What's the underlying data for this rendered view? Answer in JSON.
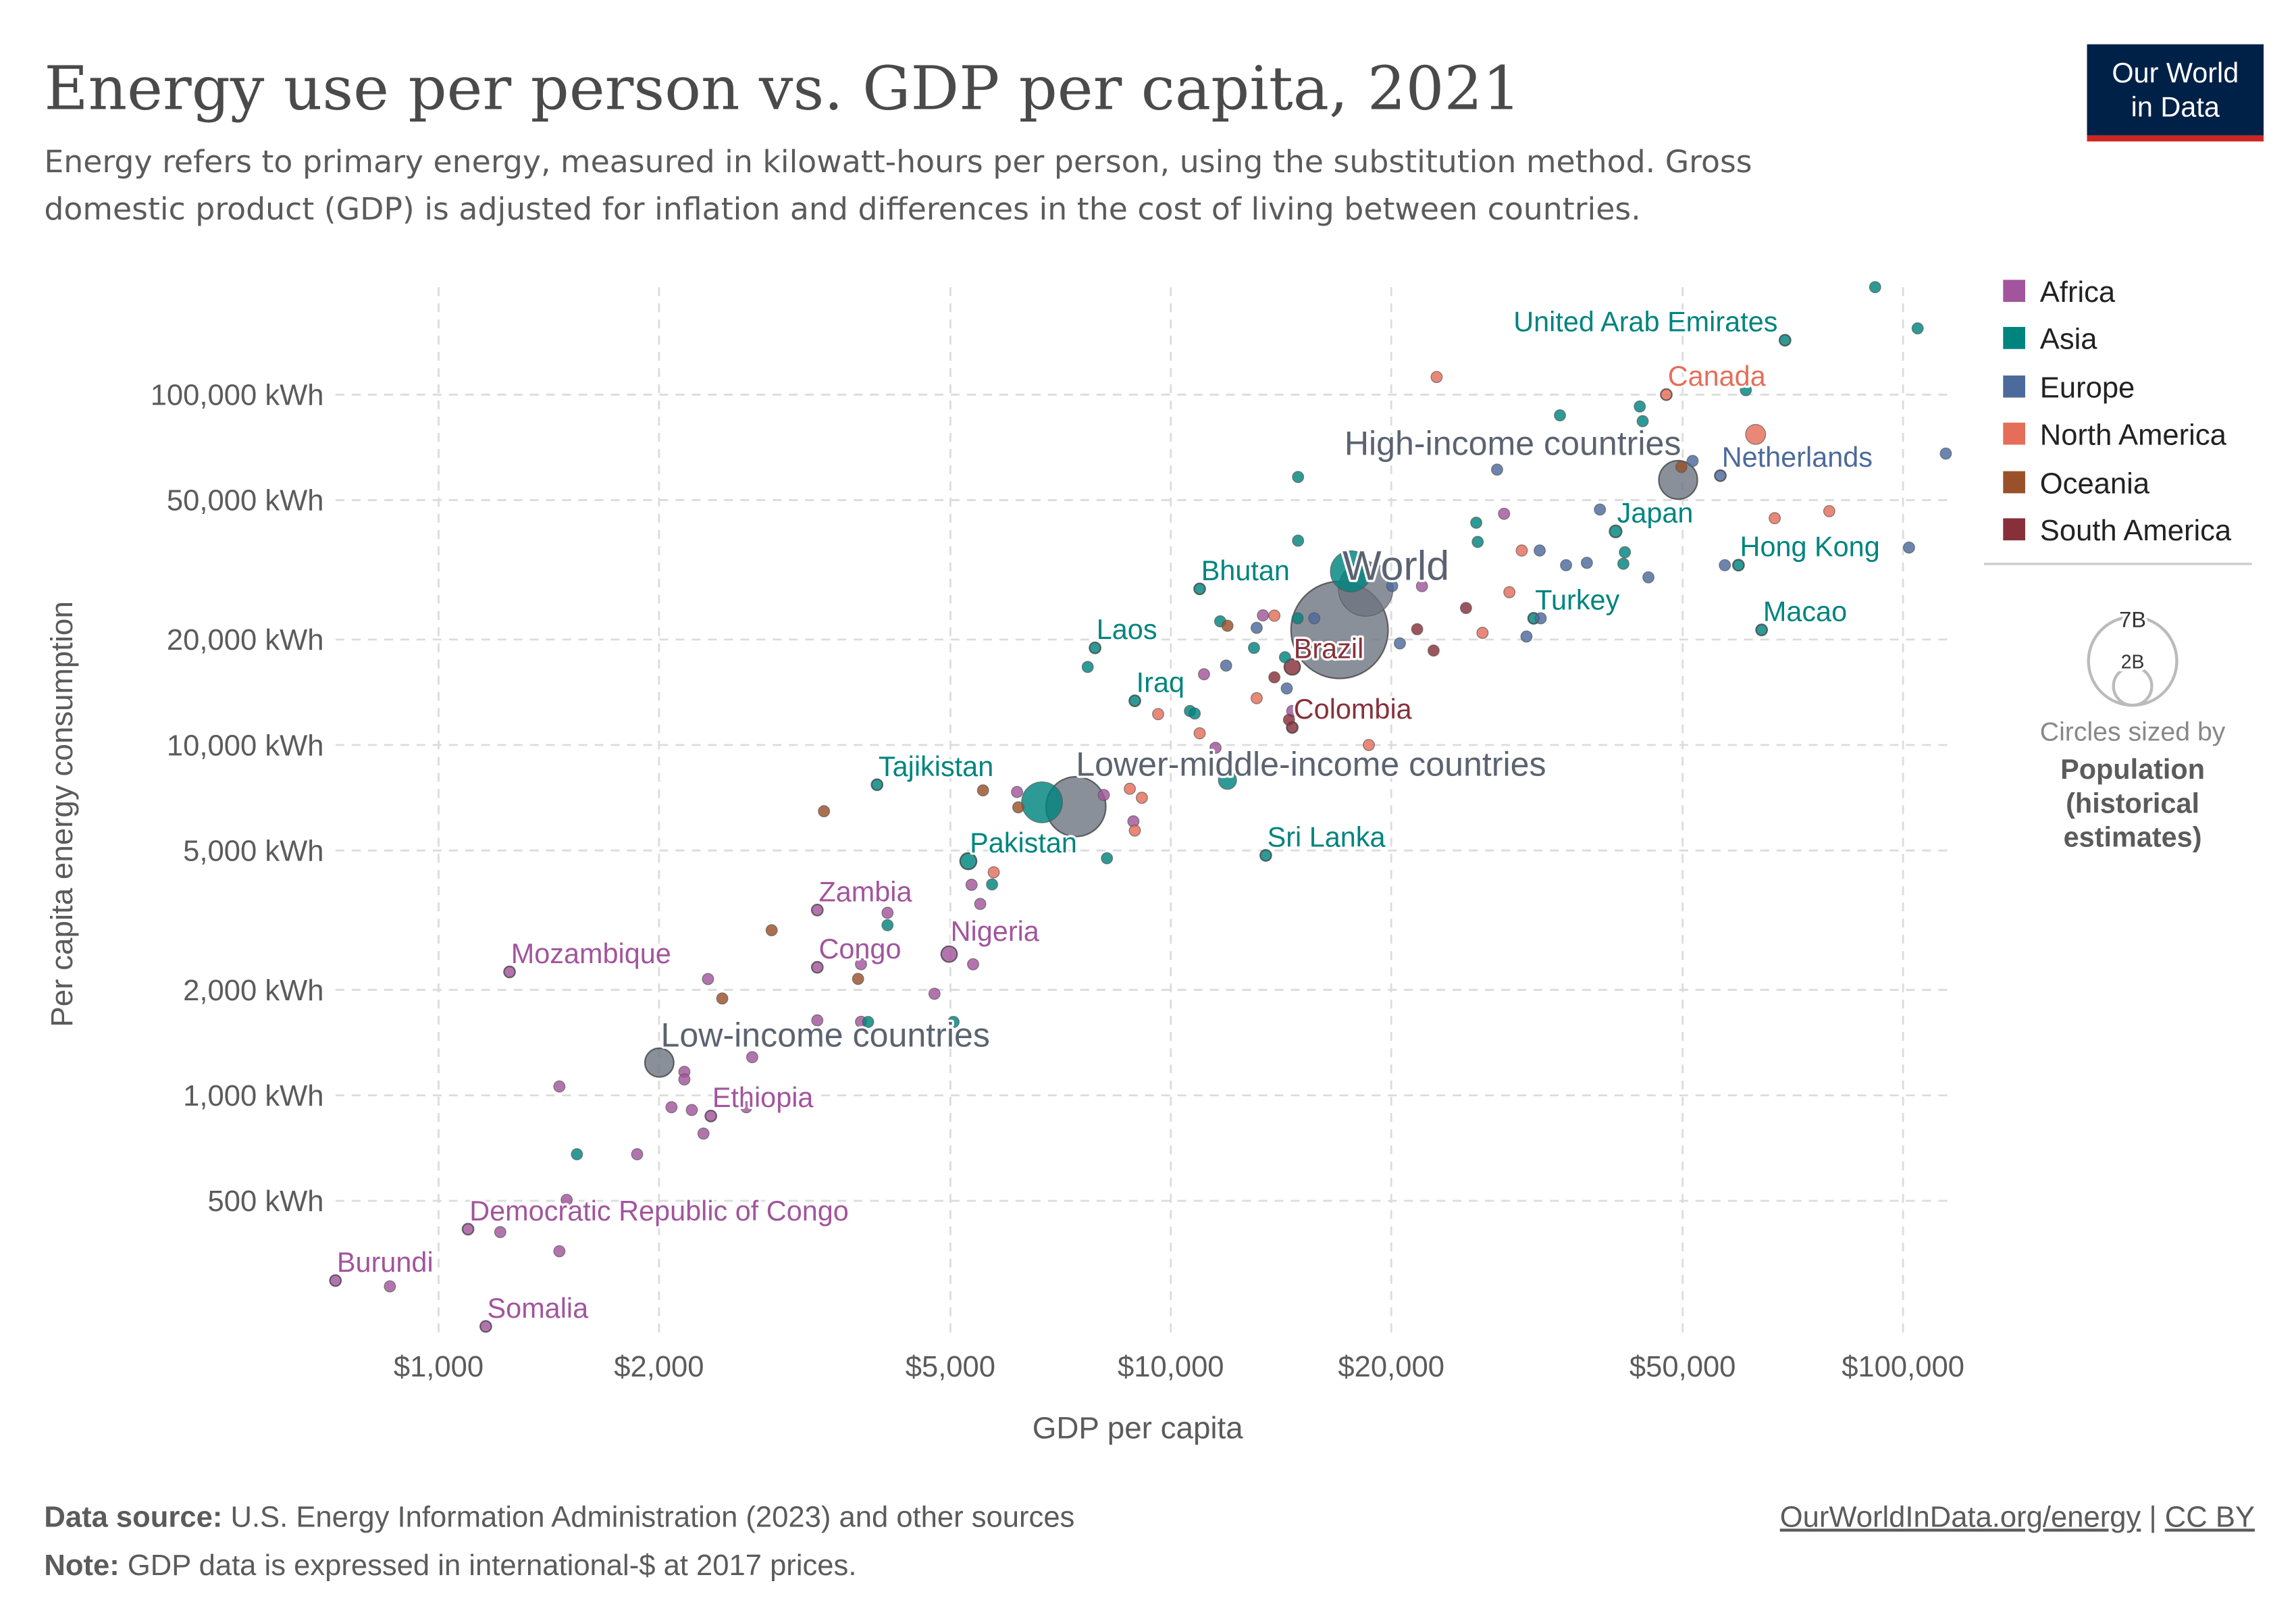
{
  "header": {
    "title": "Energy use per person vs. GDP per capita, 2021",
    "subtitle_line1": "Energy refers to primary energy, measured in kilowatt-hours per person, using the substitution method. Gross",
    "subtitle_line2": "domestic product (GDP) is adjusted for inflation and differences in the cost of living between countries.",
    "logo_line1": "Our World",
    "logo_line2": "in Data"
  },
  "footer": {
    "source_label": "Data source:",
    "source_text": " U.S. Energy Information Administration (2023) and other sources",
    "note_label": "Note:",
    "note_text": " GDP data is expressed in international-$ at 2017 prices.",
    "link": "OurWorldInData.org/energy",
    "separator": " | ",
    "license": "CC BY"
  },
  "colors": {
    "Africa": "#a2559c",
    "Asia": "#00847e",
    "Europe": "#4c6a9c",
    "North America": "#e56e5a",
    "Oceania": "#9a5129",
    "South America": "#883039",
    "Aggregate": "#6d7480",
    "aggregate_text": "#5b6371",
    "logo_bg": "#002147",
    "logo_accent": "#ce261e"
  },
  "chart_data": {
    "type": "scatter",
    "title": "Energy use per person vs. GDP per capita, 2021",
    "xlabel": "GDP per capita",
    "ylabel": "Per capita energy consumption",
    "xscale": "log",
    "yscale": "log",
    "xlim": [
      720,
      118000
    ],
    "ylim": [
      210,
      215000
    ],
    "grid": true,
    "xticks": [
      {
        "value": 1000,
        "label": "$1,000"
      },
      {
        "value": 2000,
        "label": "$2,000"
      },
      {
        "value": 5000,
        "label": "$5,000"
      },
      {
        "value": 10000,
        "label": "$10,000"
      },
      {
        "value": 20000,
        "label": "$20,000"
      },
      {
        "value": 50000,
        "label": "$50,000"
      },
      {
        "value": 100000,
        "label": "$100,000"
      }
    ],
    "yticks": [
      {
        "value": 500,
        "label": "500 kWh"
      },
      {
        "value": 1000,
        "label": "1,000 kWh"
      },
      {
        "value": 2000,
        "label": "2,000 kWh"
      },
      {
        "value": 5000,
        "label": "5,000 kWh"
      },
      {
        "value": 10000,
        "label": "10,000 kWh"
      },
      {
        "value": 20000,
        "label": "20,000 kWh"
      },
      {
        "value": 50000,
        "label": "50,000 kWh"
      },
      {
        "value": 100000,
        "label": "100,000 kWh"
      }
    ],
    "legend": {
      "placement": "right",
      "entries": [
        "Africa",
        "Asia",
        "Europe",
        "North America",
        "Oceania",
        "South America"
      ]
    },
    "size_legend": {
      "large": "7B",
      "small": "2B",
      "caption": "Circles sized by",
      "variable_line1": "Population",
      "variable_line2": "(historical",
      "variable_line3": "estimates)"
    },
    "points": [
      {
        "name": "World",
        "gdp": 17000,
        "energy": 21300,
        "continent": "Aggregate",
        "pop": 7900,
        "label": true
      },
      {
        "name": "Upper-middle-income countries",
        "gdp": 18460,
        "energy": 27900,
        "continent": "Aggregate",
        "pop": 2500
      },
      {
        "name": "Lower-middle-income countries",
        "gdp": 7420,
        "energy": 6670,
        "continent": "Aggregate",
        "pop": 3000,
        "label": true
      },
      {
        "name": "High-income countries",
        "gdp": 49300,
        "energy": 57100,
        "continent": "Aggregate",
        "pop": 1250,
        "label": true
      },
      {
        "name": "Low-income countries",
        "gdp": 2002,
        "energy": 1240,
        "continent": "Aggregate",
        "pop": 700,
        "label": true
      },
      {
        "name": "China",
        "gdp": 17620,
        "energy": 31300,
        "continent": "Asia",
        "pop": 1412
      },
      {
        "name": "India",
        "gdp": 6670,
        "energy": 6860,
        "continent": "Asia",
        "pop": 1400
      },
      {
        "name": "United States",
        "gdp": 62900,
        "energy": 77000,
        "continent": "North America",
        "pop": 335
      },
      {
        "name": "Indonesia",
        "gdp": 11950,
        "energy": 7930,
        "continent": "Asia",
        "pop": 275
      },
      {
        "name": "United Arab Emirates",
        "gdp": 69000,
        "energy": 143000,
        "continent": "Asia",
        "label": true
      },
      {
        "name": "Canada",
        "gdp": 47500,
        "energy": 100000,
        "continent": "North America",
        "label": true
      },
      {
        "name": "Netherlands",
        "gdp": 56300,
        "energy": 58700,
        "continent": "Europe",
        "label": true
      },
      {
        "name": "Japan",
        "gdp": 40500,
        "energy": 40700,
        "continent": "Asia",
        "pop": 125,
        "label": true
      },
      {
        "name": "Hong Kong",
        "gdp": 59600,
        "energy": 32600,
        "continent": "Asia",
        "label": true
      },
      {
        "name": "Macao",
        "gdp": 64100,
        "energy": 21300,
        "continent": "Asia",
        "label": true
      },
      {
        "name": "Turkey",
        "gdp": 31300,
        "energy": 22990,
        "continent": "Asia",
        "label": true
      },
      {
        "name": "Bhutan",
        "gdp": 10950,
        "energy": 27900,
        "continent": "Asia",
        "label": true
      },
      {
        "name": "Laos",
        "gdp": 7880,
        "energy": 18930,
        "continent": "Asia",
        "label": true
      },
      {
        "name": "Iraq",
        "gdp": 8930,
        "energy": 13370,
        "continent": "Asia",
        "label": true
      },
      {
        "name": "Brazil",
        "gdp": 14650,
        "energy": 16700,
        "continent": "South America",
        "pop": 214,
        "label": true
      },
      {
        "name": "Colombia",
        "gdp": 14650,
        "energy": 11220,
        "continent": "South America",
        "label": true
      },
      {
        "name": "Tajikistan",
        "gdp": 3970,
        "energy": 7700,
        "continent": "Asia",
        "label": true
      },
      {
        "name": "Pakistan",
        "gdp": 5290,
        "energy": 4660,
        "continent": "Asia",
        "pop": 230,
        "label": true
      },
      {
        "name": "Sri Lanka",
        "gdp": 13480,
        "energy": 4840,
        "continent": "Asia",
        "label": true
      },
      {
        "name": "Zambia",
        "gdp": 3290,
        "energy": 3380,
        "continent": "Africa",
        "label": true
      },
      {
        "name": "Congo",
        "gdp": 3290,
        "energy": 2320,
        "continent": "Africa",
        "label": true
      },
      {
        "name": "Nigeria",
        "gdp": 4980,
        "energy": 2530,
        "continent": "Africa",
        "pop": 213,
        "label": true
      },
      {
        "name": "Mozambique",
        "gdp": 1250,
        "energy": 2250,
        "continent": "Africa",
        "label": true
      },
      {
        "name": "Ethiopia",
        "gdp": 2354,
        "energy": 873,
        "continent": "Africa",
        "label": true
      },
      {
        "name": "Democratic Republic of Congo",
        "gdp": 1097,
        "energy": 415,
        "continent": "Africa",
        "label": true
      },
      {
        "name": "Burundi",
        "gdp": 723,
        "energy": 296,
        "continent": "Africa",
        "label": true
      },
      {
        "name": "Somalia",
        "gdp": 1160,
        "energy": 219,
        "continent": "Africa",
        "label": true
      },
      {
        "gdp": 858,
        "energy": 285,
        "continent": "Africa"
      },
      {
        "gdp": 1214,
        "energy": 407,
        "continent": "Africa"
      },
      {
        "gdp": 1462,
        "energy": 359,
        "continent": "Africa"
      },
      {
        "gdp": 1462,
        "energy": 1060,
        "continent": "Africa"
      },
      {
        "gdp": 1496,
        "energy": 503,
        "continent": "Africa"
      },
      {
        "gdp": 1867,
        "energy": 679,
        "continent": "Africa"
      },
      {
        "gdp": 2166,
        "energy": 1167,
        "continent": "Africa"
      },
      {
        "gdp": 2166,
        "energy": 1110,
        "continent": "Africa"
      },
      {
        "gdp": 2217,
        "energy": 908,
        "continent": "Africa"
      },
      {
        "gdp": 2080,
        "energy": 925,
        "continent": "Africa"
      },
      {
        "gdp": 2300,
        "energy": 778,
        "continent": "Africa"
      },
      {
        "gdp": 2632,
        "energy": 925,
        "continent": "Africa"
      },
      {
        "gdp": 2681,
        "energy": 1285,
        "continent": "Africa"
      },
      {
        "gdp": 2333,
        "energy": 2148,
        "continent": "Africa"
      },
      {
        "gdp": 4103,
        "energy": 3319,
        "continent": "Africa"
      },
      {
        "gdp": 3775,
        "energy": 2367,
        "continent": "Africa"
      },
      {
        "gdp": 3290,
        "energy": 1637,
        "continent": "Africa"
      },
      {
        "gdp": 3775,
        "energy": 1622,
        "continent": "Africa"
      },
      {
        "gdp": 4756,
        "energy": 1950,
        "continent": "Africa"
      },
      {
        "gdp": 5370,
        "energy": 2367,
        "continent": "Africa"
      },
      {
        "gdp": 5344,
        "energy": 3990,
        "continent": "Africa"
      },
      {
        "gdp": 5492,
        "energy": 3518,
        "continent": "Africa"
      },
      {
        "gdp": 6166,
        "energy": 7345,
        "continent": "Africa"
      },
      {
        "gdp": 8100,
        "energy": 7200,
        "continent": "Africa"
      },
      {
        "gdp": 8890,
        "energy": 6053,
        "continent": "Africa"
      },
      {
        "gdp": 11510,
        "energy": 9816,
        "continent": "Africa"
      },
      {
        "gdp": 11100,
        "energy": 15920,
        "continent": "Africa"
      },
      {
        "gdp": 14650,
        "energy": 12500,
        "continent": "Africa"
      },
      {
        "gdp": 28520,
        "energy": 45710,
        "continent": "Africa"
      },
      {
        "gdp": 22030,
        "energy": 28400,
        "continent": "Africa"
      },
      {
        "gdp": 13360,
        "energy": 23440,
        "continent": "Africa"
      },
      {
        "gdp": 91600,
        "energy": 202700,
        "continent": "Asia"
      },
      {
        "gdp": 104700,
        "energy": 154600,
        "continent": "Asia"
      },
      {
        "gdp": 34000,
        "energy": 87300,
        "continent": "Asia"
      },
      {
        "gdp": 43700,
        "energy": 92500,
        "continent": "Asia"
      },
      {
        "gdp": 44100,
        "energy": 84000,
        "continent": "Asia"
      },
      {
        "gdp": 61000,
        "energy": 103000,
        "continent": "Asia"
      },
      {
        "gdp": 14920,
        "energy": 58200,
        "continent": "Asia"
      },
      {
        "gdp": 26130,
        "energy": 43100,
        "continent": "Asia"
      },
      {
        "gdp": 26250,
        "energy": 38000,
        "continent": "Asia"
      },
      {
        "gdp": 14920,
        "energy": 38300,
        "continent": "Asia"
      },
      {
        "gdp": 41700,
        "energy": 35500,
        "continent": "Asia"
      },
      {
        "gdp": 41500,
        "energy": 32900,
        "continent": "Asia"
      },
      {
        "gdp": 7700,
        "energy": 16700,
        "continent": "Asia"
      },
      {
        "gdp": 12990,
        "energy": 18930,
        "continent": "Asia"
      },
      {
        "gdp": 11680,
        "energy": 22540,
        "continent": "Asia"
      },
      {
        "gdp": 14900,
        "energy": 23000,
        "continent": "Asia"
      },
      {
        "gdp": 14320,
        "energy": 17800,
        "continent": "Asia"
      },
      {
        "gdp": 10620,
        "energy": 12500,
        "continent": "Asia"
      },
      {
        "gdp": 10780,
        "energy": 12300,
        "continent": "Asia"
      },
      {
        "gdp": 8180,
        "energy": 4750,
        "continent": "Asia"
      },
      {
        "gdp": 5700,
        "energy": 4000,
        "continent": "Asia"
      },
      {
        "gdp": 3860,
        "energy": 1620,
        "continent": "Asia"
      },
      {
        "gdp": 5050,
        "energy": 1620,
        "continent": "Asia"
      },
      {
        "gdp": 1545,
        "energy": 679,
        "continent": "Asia"
      },
      {
        "gdp": 4103,
        "energy": 3060,
        "continent": "Asia"
      },
      {
        "gdp": 114400,
        "energy": 67900,
        "continent": "Europe"
      },
      {
        "gdp": 51600,
        "energy": 64700,
        "continent": "Europe"
      },
      {
        "gdp": 27900,
        "energy": 61100,
        "continent": "Europe"
      },
      {
        "gdp": 38550,
        "energy": 47000,
        "continent": "Europe"
      },
      {
        "gdp": 34660,
        "energy": 32600,
        "continent": "Europe"
      },
      {
        "gdp": 37000,
        "energy": 33100,
        "continent": "Europe"
      },
      {
        "gdp": 31900,
        "energy": 35900,
        "continent": "Europe"
      },
      {
        "gdp": 32000,
        "energy": 23000,
        "continent": "Europe"
      },
      {
        "gdp": 30600,
        "energy": 20400,
        "continent": "Europe"
      },
      {
        "gdp": 57100,
        "energy": 32600,
        "continent": "Europe"
      },
      {
        "gdp": 101900,
        "energy": 36600,
        "continent": "Europe"
      },
      {
        "gdp": 44900,
        "energy": 30100,
        "continent": "Europe"
      },
      {
        "gdp": 20060,
        "energy": 28440,
        "continent": "Europe"
      },
      {
        "gdp": 20550,
        "energy": 19500,
        "continent": "Europe"
      },
      {
        "gdp": 15700,
        "energy": 23000,
        "continent": "Europe"
      },
      {
        "gdp": 13100,
        "energy": 21600,
        "continent": "Europe"
      },
      {
        "gdp": 14400,
        "energy": 14500,
        "continent": "Europe"
      },
      {
        "gdp": 11900,
        "energy": 16850,
        "continent": "Europe"
      },
      {
        "gdp": 23070,
        "energy": 112300,
        "continent": "North America"
      },
      {
        "gdp": 30150,
        "energy": 35900,
        "continent": "North America"
      },
      {
        "gdp": 29000,
        "energy": 27300,
        "continent": "North America"
      },
      {
        "gdp": 26650,
        "energy": 20900,
        "continent": "North America"
      },
      {
        "gdp": 66800,
        "energy": 44400,
        "continent": "North America"
      },
      {
        "gdp": 79300,
        "energy": 46500,
        "continent": "North America"
      },
      {
        "gdp": 18640,
        "energy": 10000,
        "continent": "North America"
      },
      {
        "gdp": 9610,
        "energy": 12250,
        "continent": "North America"
      },
      {
        "gdp": 10950,
        "energy": 10800,
        "continent": "North America"
      },
      {
        "gdp": 13100,
        "energy": 13600,
        "continent": "North America"
      },
      {
        "gdp": 13850,
        "energy": 23400,
        "continent": "North America"
      },
      {
        "gdp": 8790,
        "energy": 7500,
        "continent": "North America"
      },
      {
        "gdp": 9130,
        "energy": 7070,
        "continent": "North America"
      },
      {
        "gdp": 8930,
        "energy": 5700,
        "continent": "North America"
      },
      {
        "gdp": 5730,
        "energy": 4330,
        "continent": "North America"
      },
      {
        "gdp": 49800,
        "energy": 62200,
        "continent": "Oceania"
      },
      {
        "gdp": 3360,
        "energy": 6470,
        "continent": "Oceania"
      },
      {
        "gdp": 2850,
        "energy": 2960,
        "continent": "Oceania"
      },
      {
        "gdp": 2440,
        "energy": 1890,
        "continent": "Oceania"
      },
      {
        "gdp": 3740,
        "energy": 2150,
        "continent": "Oceania"
      },
      {
        "gdp": 5540,
        "energy": 7420,
        "continent": "Oceania"
      },
      {
        "gdp": 6190,
        "energy": 6640,
        "continent": "Oceania"
      },
      {
        "gdp": 11950,
        "energy": 21900,
        "continent": "Oceania"
      },
      {
        "gdp": 25300,
        "energy": 24600,
        "continent": "South America"
      },
      {
        "gdp": 22850,
        "energy": 18600,
        "continent": "South America"
      },
      {
        "gdp": 21700,
        "energy": 21400,
        "continent": "South America"
      },
      {
        "gdp": 13850,
        "energy": 15600,
        "continent": "South America"
      },
      {
        "gdp": 14500,
        "energy": 11800,
        "continent": "South America"
      }
    ]
  }
}
